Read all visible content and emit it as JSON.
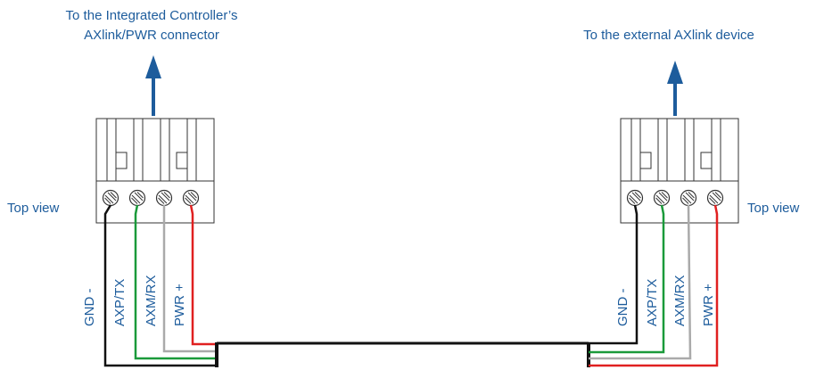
{
  "left": {
    "caption_lines": [
      "To the Integrated Controller’s",
      "AXlink/PWR connector"
    ],
    "view_label": "Top view",
    "wires": [
      "GND -",
      "AXP/TX",
      "AXM/RX",
      "PWR +"
    ]
  },
  "right": {
    "caption_lines": [
      "To the external AXlink device"
    ],
    "view_label": "Top view",
    "wires": [
      "GND -",
      "AXP/TX",
      "AXM/RX",
      "PWR +"
    ]
  }
}
